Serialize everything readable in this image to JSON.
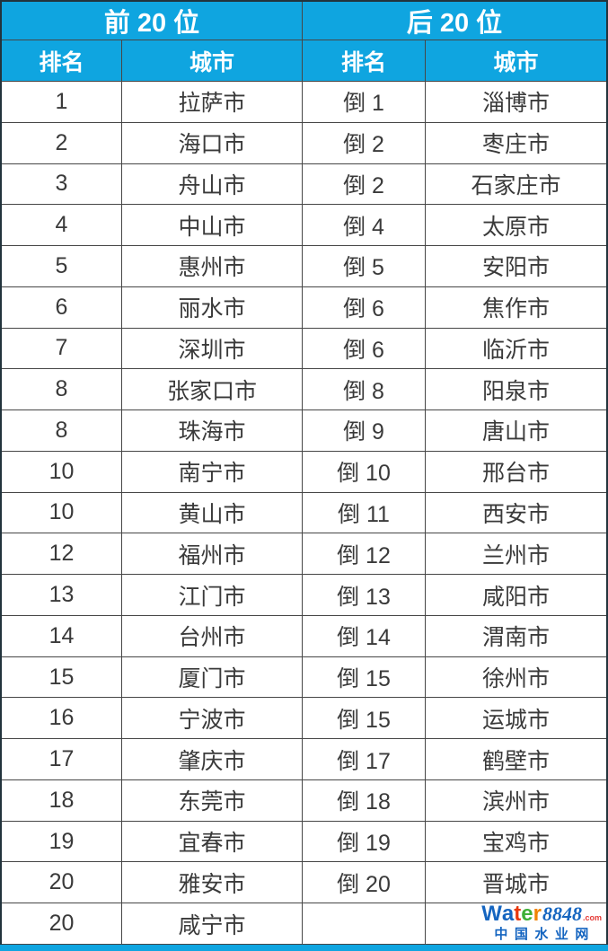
{
  "colors": {
    "header_bg": "#0fa5e0",
    "header_text": "#ffffff",
    "body_text": "#3a3a3a",
    "grid_line": "#464646",
    "outer_border": "#22333c",
    "bottom_bar": "#0fa5e0",
    "logo_blue": "#1565c0",
    "logo_red_t": "#e8380d",
    "logo_green_e": "#3faf37",
    "logo_orange_r": "#f08300",
    "logo_dotcom_red": "#e53935"
  },
  "chart_data": {
    "type": "table",
    "left_title": "前 20 位",
    "right_title": "后 20 位",
    "columns": [
      "排名",
      "城市",
      "排名",
      "城市"
    ],
    "rows": [
      [
        "1",
        "拉萨市",
        "倒 1",
        "淄博市"
      ],
      [
        "2",
        "海口市",
        "倒 2",
        "枣庄市"
      ],
      [
        "3",
        "舟山市",
        "倒 2",
        "石家庄市"
      ],
      [
        "4",
        "中山市",
        "倒 4",
        "太原市"
      ],
      [
        "5",
        "惠州市",
        "倒 5",
        "安阳市"
      ],
      [
        "6",
        "丽水市",
        "倒 6",
        "焦作市"
      ],
      [
        "7",
        "深圳市",
        "倒 6",
        "临沂市"
      ],
      [
        "8",
        "张家口市",
        "倒 8",
        "阳泉市"
      ],
      [
        "8",
        "珠海市",
        "倒 9",
        "唐山市"
      ],
      [
        "10",
        "南宁市",
        "倒 10",
        "邢台市"
      ],
      [
        "10",
        "黄山市",
        "倒 11",
        "西安市"
      ],
      [
        "12",
        "福州市",
        "倒 12",
        "兰州市"
      ],
      [
        "13",
        "江门市",
        "倒 13",
        "咸阳市"
      ],
      [
        "14",
        "台州市",
        "倒 14",
        "渭南市"
      ],
      [
        "15",
        "厦门市",
        "倒 15",
        "徐州市"
      ],
      [
        "16",
        "宁波市",
        "倒 15",
        "运城市"
      ],
      [
        "17",
        "肇庆市",
        "倒 17",
        "鹤壁市"
      ],
      [
        "18",
        "东莞市",
        "倒 18",
        "滨州市"
      ],
      [
        "19",
        "宜春市",
        "倒 19",
        "宝鸡市"
      ],
      [
        "20",
        "雅安市",
        "倒 20",
        "晋城市"
      ],
      [
        "20",
        "咸宁市",
        "",
        ""
      ]
    ]
  },
  "watermark": {
    "letters": [
      "W",
      "a",
      "t",
      "e",
      "r"
    ],
    "letter_colors": [
      "#1565c0",
      "#1565c0",
      "#e8380d",
      "#3faf37",
      "#f08300"
    ],
    "number": "8848",
    "dotcom": ".com",
    "subtitle": "中国水业网"
  }
}
